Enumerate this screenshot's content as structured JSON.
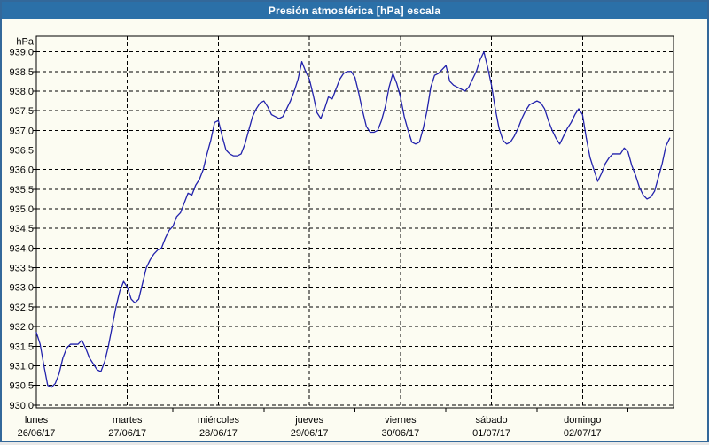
{
  "window": {
    "title": "Presión atmosférica [hPa] escala"
  },
  "colors": {
    "titlebar": "#2B70A8",
    "window_border": "#33689A",
    "background": "#FCFCF2",
    "grid": "#000000",
    "line": "#2222AC"
  },
  "chart_data": {
    "type": "line",
    "title": "Presión atmosférica [hPa] escala",
    "unit_label": "hPa",
    "ylabel": "hPa",
    "ylim": [
      930.0,
      939.0
    ],
    "ytick_step": 0.5,
    "grid": true,
    "legend_position": "none",
    "ytick_labels": [
      "939,0",
      "938,5",
      "938,0",
      "937,5",
      "937,0",
      "936,5",
      "936,0",
      "935,5",
      "935,0",
      "934,5",
      "934,0",
      "933,5",
      "933,0",
      "932,5",
      "932,0",
      "931,5",
      "931,0",
      "930,5",
      "930,0"
    ],
    "days": [
      {
        "name": "lunes",
        "date": "26/06/17"
      },
      {
        "name": "martes",
        "date": "27/06/17"
      },
      {
        "name": "miércoles",
        "date": "28/06/17"
      },
      {
        "name": "jueves",
        "date": "29/06/17"
      },
      {
        "name": "viernes",
        "date": "30/06/17"
      },
      {
        "name": "sábado",
        "date": "01/07/17"
      },
      {
        "name": "domingo",
        "date": "02/07/17"
      }
    ],
    "points_per_day": 24,
    "series": [
      {
        "name": "Presión atmosférica [hPa]",
        "values": [
          931.85,
          931.55,
          931.0,
          930.5,
          930.45,
          930.55,
          930.8,
          931.2,
          931.45,
          931.55,
          931.55,
          931.55,
          931.65,
          931.45,
          931.2,
          931.05,
          930.9,
          930.85,
          931.1,
          931.5,
          932.0,
          932.5,
          932.9,
          933.15,
          933.0,
          932.7,
          932.6,
          932.7,
          933.1,
          933.5,
          933.7,
          933.85,
          933.95,
          934.0,
          934.25,
          934.45,
          934.55,
          934.8,
          934.9,
          935.15,
          935.4,
          935.35,
          935.6,
          935.75,
          936.0,
          936.4,
          936.75,
          937.2,
          937.25,
          936.85,
          936.5,
          936.4,
          936.35,
          936.35,
          936.4,
          936.65,
          937.0,
          937.35,
          937.55,
          937.7,
          937.75,
          937.6,
          937.4,
          937.35,
          937.3,
          937.35,
          937.55,
          937.75,
          938.0,
          938.3,
          938.75,
          938.5,
          938.3,
          937.9,
          937.45,
          937.3,
          937.55,
          937.85,
          937.8,
          938.05,
          938.3,
          938.45,
          938.5,
          938.5,
          938.35,
          937.95,
          937.5,
          937.1,
          936.95,
          936.95,
          937.0,
          937.25,
          937.6,
          938.1,
          938.45,
          938.2,
          937.85,
          937.35,
          937.0,
          936.7,
          936.65,
          936.7,
          937.05,
          937.5,
          938.1,
          938.4,
          938.45,
          938.55,
          938.65,
          938.25,
          938.15,
          938.1,
          938.05,
          938.0,
          938.1,
          938.3,
          938.5,
          938.8,
          939.0,
          938.6,
          938.15,
          937.55,
          937.05,
          936.75,
          936.65,
          936.7,
          936.85,
          937.05,
          937.3,
          937.5,
          937.65,
          937.7,
          937.75,
          937.7,
          937.55,
          937.25,
          937.0,
          936.8,
          936.65,
          936.85,
          937.05,
          937.2,
          937.4,
          937.55,
          937.4,
          936.8,
          936.3,
          936.0,
          935.7,
          935.9,
          936.15,
          936.3,
          936.4,
          936.4,
          936.4,
          936.55,
          936.45,
          936.1,
          935.85,
          935.55,
          935.35,
          935.25,
          935.3,
          935.45,
          935.8,
          936.15,
          936.6,
          936.8
        ]
      }
    ]
  }
}
